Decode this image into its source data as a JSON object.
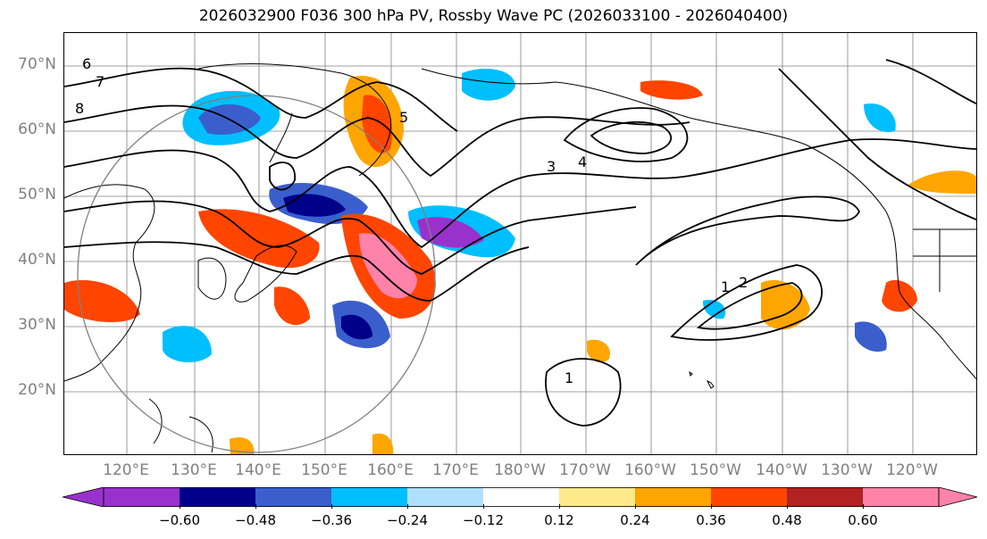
{
  "title": "2026032900 F036 300 hPa PV, Rossby Wave PC (2026033100 - 2026040400)",
  "map": {
    "lat_labels": [
      "70°N",
      "60°N",
      "50°N",
      "40°N",
      "30°N",
      "20°N"
    ],
    "lon_labels": [
      "120°E",
      "130°E",
      "140°E",
      "150°E",
      "160°E",
      "170°E",
      "180°W",
      "170°W",
      "160°W",
      "150°W",
      "140°W",
      "130°W",
      "120°W"
    ],
    "contour_labels": [
      "1",
      "2",
      "3",
      "4",
      "5",
      "6",
      "7",
      "8"
    ],
    "colors": {
      "land_outline": "#000000",
      "grid": "#808080",
      "contour": "#000000"
    }
  },
  "colorbar": {
    "ticks": [
      "−0.60",
      "−0.48",
      "−0.36",
      "−0.24",
      "−0.12",
      "0.12",
      "0.24",
      "0.36",
      "0.48",
      "0.60"
    ],
    "colors": [
      "#9932cc",
      "#00008b",
      "#3a5fcd",
      "#00bfff",
      "#b0e0ff",
      "#ffffff",
      "#ffe98a",
      "#ffa500",
      "#ff4500",
      "#b22222",
      "#ff82ab"
    ]
  }
}
